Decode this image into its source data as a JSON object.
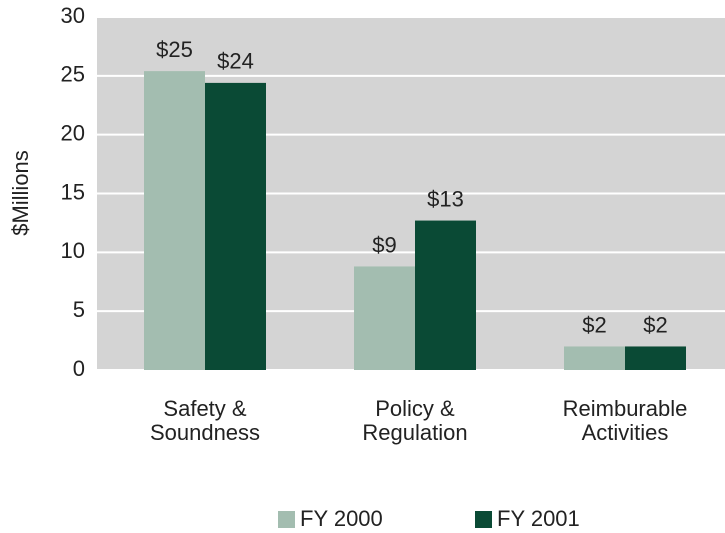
{
  "chart_data": {
    "type": "bar",
    "ylabel": "$Millions",
    "categories": [
      "Safety &\nSoundness",
      "Policy &\nRegulation",
      "Reimburable\nActivities"
    ],
    "series": [
      {
        "name": "FY 2000",
        "color": "#a3bdb0",
        "values": [
          25.4,
          8.8,
          2.0
        ],
        "value_labels": [
          "$25",
          "$9",
          "$2"
        ]
      },
      {
        "name": "FY 2001",
        "color": "#0a4a35",
        "values": [
          24.4,
          12.7,
          2.0
        ],
        "value_labels": [
          "$24",
          "$13",
          "$2"
        ]
      }
    ],
    "ylim": [
      0,
      30
    ],
    "yticks": [
      0,
      5,
      10,
      15,
      20,
      25,
      30
    ],
    "grid": true,
    "legend": "bottom"
  }
}
